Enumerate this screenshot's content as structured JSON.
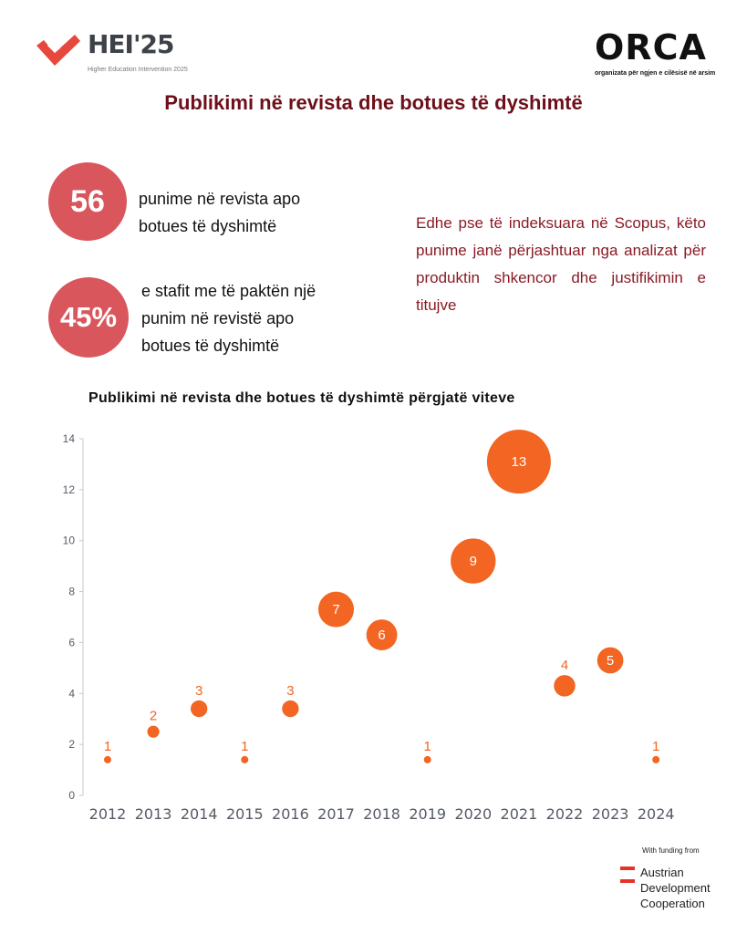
{
  "header": {
    "left_logo": {
      "name": "HEI'25",
      "subtitle": "Higher Education Intervention 2025"
    },
    "right_logo": {
      "name": "ORCA",
      "subtitle": "organizata për ngjen e cilësisë në arsim"
    },
    "title": "Publikimi në revista dhe botues të dyshimtë"
  },
  "stats": [
    {
      "value": "56",
      "text_lines": [
        "punime në revista apo",
        "botues të dyshimtë"
      ]
    },
    {
      "value": "45%",
      "text_lines": [
        "e stafit me të paktën një",
        "punim në revistë apo",
        "botues të dyshimtë"
      ]
    }
  ],
  "note": "Edhe pse të indeksuara në Scopus, këto punime janë përjashtuar nga analizat për produktin shkencor dhe justifikimin e titujve",
  "colors": {
    "title": "#6e0f1a",
    "stat_circle": "#d9575c",
    "note": "#8a1a24",
    "bubble": "#f26522",
    "axis_text": "#555b66"
  },
  "chart_data": {
    "type": "scatter",
    "subtype": "bubble",
    "title": "Publikimi në revista dhe botues të dyshimtë përgjatë viteve",
    "categories": [
      "2012",
      "2013",
      "2014",
      "2015",
      "2016",
      "2017",
      "2018",
      "2019",
      "2020",
      "2021",
      "2022",
      "2023",
      "2024"
    ],
    "values": [
      1,
      2,
      3,
      1,
      3,
      7,
      6,
      1,
      9,
      13,
      4,
      5,
      1
    ],
    "y_positions": [
      1.4,
      2.5,
      3.4,
      1.4,
      3.4,
      7.3,
      6.3,
      1.4,
      9.2,
      13.1,
      4.3,
      5.3,
      1.4
    ],
    "ylim": [
      0,
      14
    ],
    "yticks": [
      0,
      2,
      4,
      6,
      8,
      10,
      12,
      14
    ],
    "grid": false,
    "legend": "none"
  },
  "funding": {
    "label": "With funding from",
    "name_lines": [
      "Austrian",
      "Development",
      "Cooperation"
    ]
  }
}
